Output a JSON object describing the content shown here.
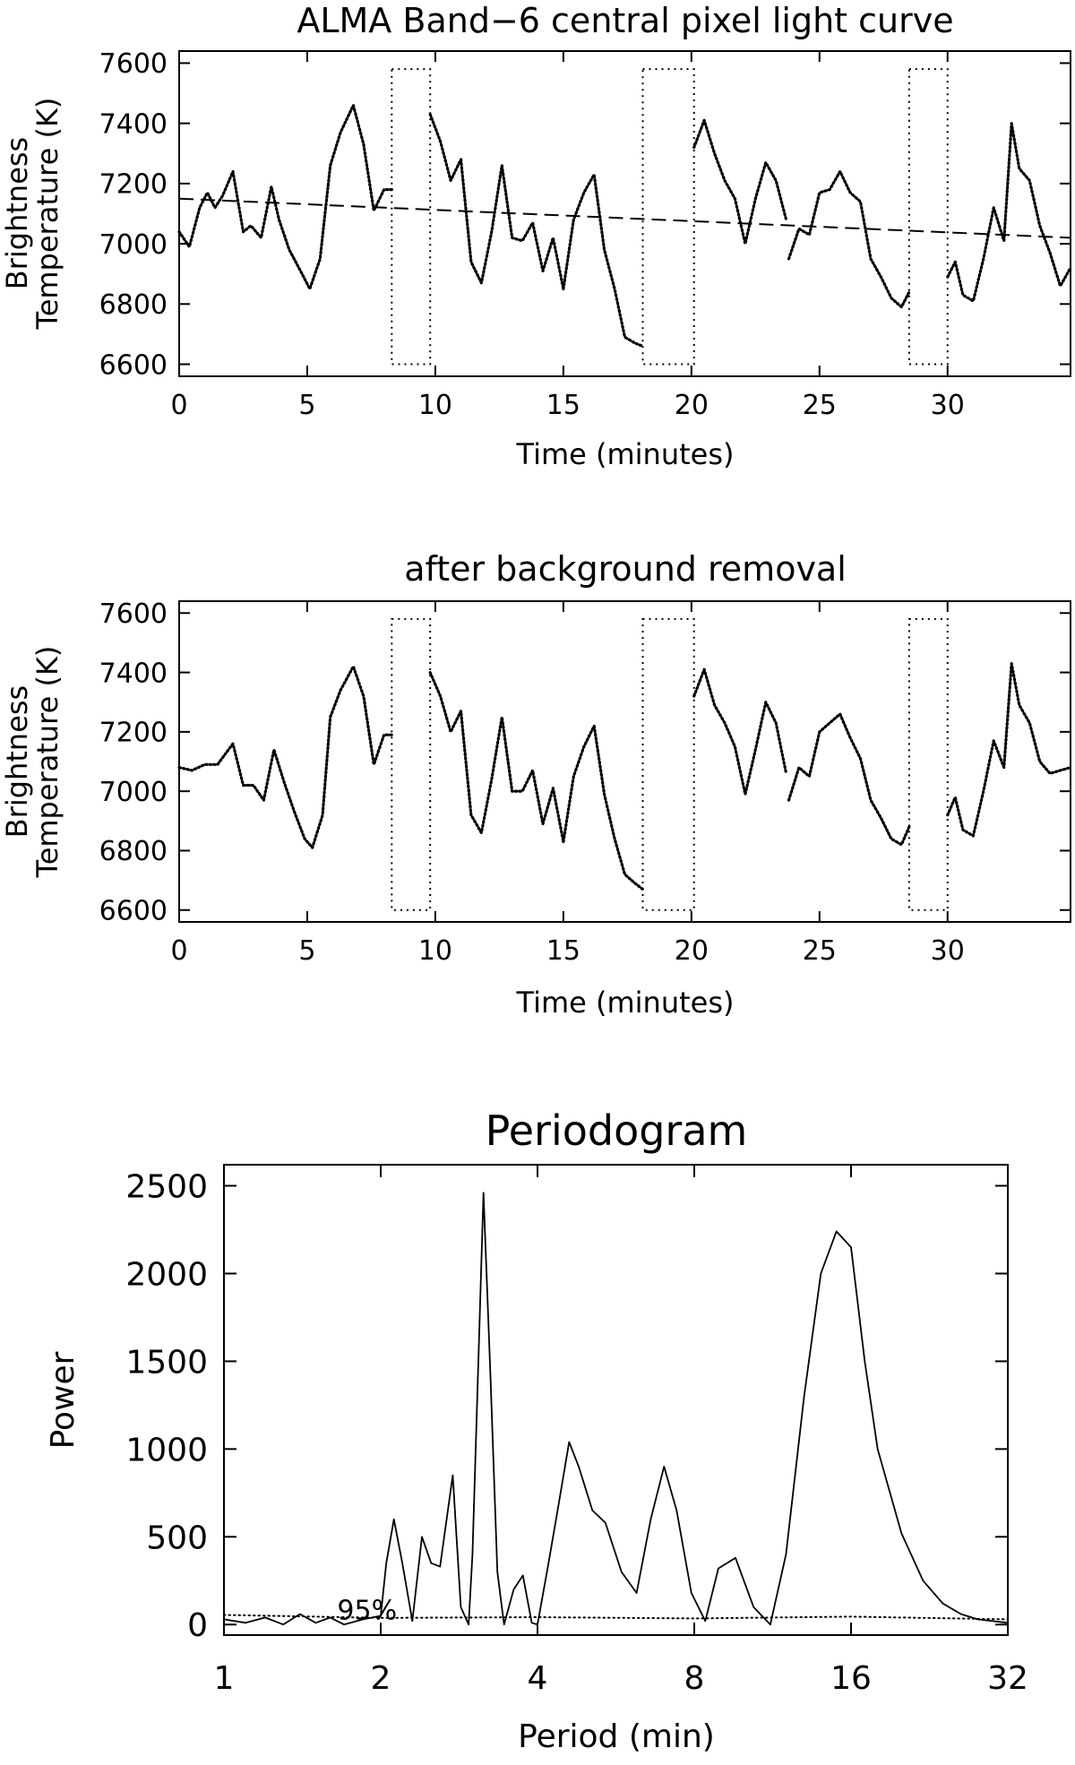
{
  "chart_data": [
    {
      "type": "line",
      "title": "ALMA Band−6 central pixel light curve",
      "xlabel": "Time (minutes)",
      "ylabel": [
        "Brightness",
        "Temperature (K)"
      ],
      "xlim": [
        0,
        34.8
      ],
      "ylim": [
        6560,
        7640
      ],
      "xticks": [
        0,
        5,
        10,
        15,
        20,
        25,
        30
      ],
      "xtick_labels": [
        "0",
        "5",
        "10",
        "15",
        "20",
        "25",
        "30"
      ],
      "yticks": [
        6600,
        6800,
        7000,
        7200,
        7400,
        7600
      ],
      "ytick_labels": [
        "6600",
        "6800",
        "7000",
        "7200",
        "7400",
        "7600"
      ],
      "gaps": [
        [
          8.3,
          9.8
        ],
        [
          18.1,
          20.1
        ],
        [
          28.5,
          30.0
        ]
      ],
      "series": [
        {
          "name": "light curve",
          "style": "dotted",
          "segments": [
            {
              "x": [
                0,
                0.4,
                0.8,
                1.1,
                1.4,
                1.7,
                2.1,
                2.5,
                2.8,
                3.2,
                3.6,
                3.9,
                4.3,
                4.8,
                5.1,
                5.5,
                5.9,
                6.3,
                6.8,
                7.2,
                7.6,
                8.0,
                8.3
              ],
              "y": [
                7040,
                6990,
                7120,
                7170,
                7120,
                7160,
                7240,
                7040,
                7060,
                7020,
                7190,
                7080,
                6980,
                6900,
                6850,
                6950,
                7260,
                7370,
                7460,
                7330,
                7110,
                7180,
                7180
              ]
            },
            {
              "x": [
                9.8,
                10.2,
                10.6,
                11.0,
                11.4,
                11.8,
                12.2,
                12.6,
                13.0,
                13.4,
                13.8,
                14.2,
                14.6,
                15.0
              ],
              "y": [
                7430,
                7340,
                7210,
                7280,
                6940,
                6870,
                7040,
                7260,
                7020,
                7010,
                7070,
                6910,
                7020,
                6850
              ]
            },
            {
              "x": [
                15.0,
                15.4,
                15.8,
                16.2,
                16.6,
                17.0,
                17.4,
                17.8,
                18.1
              ],
              "y": [
                6850,
                7080,
                7170,
                7230,
                6980,
                6850,
                6690,
                6670,
                6660
              ]
            },
            {
              "x": [
                20.1,
                20.5,
                20.9,
                21.3,
                21.7,
                22.1,
                22.5,
                22.9,
                23.3,
                23.7
              ],
              "y": [
                7320,
                7410,
                7300,
                7210,
                7150,
                7000,
                7150,
                7270,
                7210,
                7080
              ]
            },
            {
              "x": [
                23.8,
                24.2,
                24.6,
                25.0,
                25.4,
                25.8,
                26.2,
                26.6,
                27.0,
                27.4,
                27.8,
                28.2,
                28.5
              ],
              "y": [
                6950,
                7050,
                7030,
                7170,
                7180,
                7240,
                7170,
                7140,
                6950,
                6890,
                6820,
                6790,
                6840
              ]
            },
            {
              "x": [
                30.0,
                30.3,
                30.6,
                31.0,
                31.4,
                31.8,
                32.2,
                32.5,
                32.8,
                33.2,
                33.6,
                34.0,
                34.4,
                34.8
              ],
              "y": [
                6890,
                6940,
                6830,
                6810,
                6950,
                7120,
                7010,
                7400,
                7250,
                7210,
                7060,
                6970,
                6860,
                6920
              ]
            }
          ]
        },
        {
          "name": "background trend",
          "style": "dashed",
          "segments": [
            {
              "x": [
                0,
                34.8
              ],
              "y": [
                7150,
                7020
              ]
            }
          ]
        }
      ]
    },
    {
      "type": "line",
      "title": "after background removal",
      "xlabel": "Time (minutes)",
      "ylabel": [
        "Brightness",
        "Temperature (K)"
      ],
      "xlim": [
        0,
        34.8
      ],
      "ylim": [
        6560,
        7640
      ],
      "xticks": [
        0,
        5,
        10,
        15,
        20,
        25,
        30
      ],
      "xtick_labels": [
        "0",
        "5",
        "10",
        "15",
        "20",
        "25",
        "30"
      ],
      "yticks": [
        6600,
        6800,
        7000,
        7200,
        7400,
        7600
      ],
      "ytick_labels": [
        "6600",
        "6800",
        "7000",
        "7200",
        "7400",
        "7600"
      ],
      "gaps": [
        [
          8.3,
          9.8
        ],
        [
          18.1,
          20.1
        ],
        [
          28.5,
          30.0
        ]
      ],
      "series": [
        {
          "name": "detrended curve",
          "style": "dotted",
          "segments": [
            {
              "x": [
                0,
                0.5,
                1.0,
                1.5,
                2.1,
                2.5,
                2.9,
                3.3,
                3.7,
                4.1,
                4.5,
                4.9,
                5.2,
                5.6,
                5.9,
                6.3,
                6.8,
                7.2,
                7.6,
                8.0,
                8.3
              ],
              "y": [
                7080,
                7070,
                7090,
                7090,
                7160,
                7020,
                7020,
                6970,
                7140,
                7030,
                6930,
                6840,
                6810,
                6920,
                7250,
                7340,
                7420,
                7320,
                7090,
                7190,
                7190
              ]
            },
            {
              "x": [
                9.8,
                10.2,
                10.6,
                11.0,
                11.4,
                11.8,
                12.2,
                12.6,
                13.0,
                13.4,
                13.8,
                14.2,
                14.6,
                15.0
              ],
              "y": [
                7400,
                7320,
                7200,
                7270,
                6920,
                6860,
                7040,
                7250,
                7000,
                7000,
                7070,
                6890,
                7010,
                6830
              ]
            },
            {
              "x": [
                15.0,
                15.4,
                15.8,
                16.2,
                16.6,
                17.0,
                17.4,
                17.8,
                18.1
              ],
              "y": [
                6830,
                7050,
                7150,
                7220,
                6990,
                6840,
                6720,
                6690,
                6670
              ]
            },
            {
              "x": [
                20.1,
                20.5,
                20.9,
                21.3,
                21.7,
                22.1,
                22.5,
                22.9,
                23.3,
                23.7
              ],
              "y": [
                7320,
                7410,
                7290,
                7230,
                7150,
                6990,
                7140,
                7300,
                7230,
                7060
              ]
            },
            {
              "x": [
                23.8,
                24.2,
                24.6,
                25.0,
                25.4,
                25.8,
                26.2,
                26.6,
                27.0,
                27.4,
                27.8,
                28.2,
                28.5
              ],
              "y": [
                6970,
                7080,
                7050,
                7200,
                7230,
                7260,
                7180,
                7110,
                6970,
                6910,
                6840,
                6820,
                6880
              ]
            },
            {
              "x": [
                30.0,
                30.3,
                30.6,
                31.0,
                31.4,
                31.8,
                32.2,
                32.5,
                32.8,
                33.2,
                33.6,
                34.0,
                34.4,
                34.8
              ],
              "y": [
                6920,
                6980,
                6870,
                6850,
                7000,
                7170,
                7080,
                7430,
                7290,
                7230,
                7100,
                7060,
                7070,
                7080
              ]
            }
          ]
        }
      ]
    },
    {
      "type": "line",
      "title": "Periodogram",
      "xlabel": "Period (min)",
      "ylabel": "Power",
      "xscale": "log2",
      "xlim": [
        1,
        32
      ],
      "ylim": [
        -60,
        2620
      ],
      "xticks": [
        1,
        2,
        4,
        8,
        16,
        32
      ],
      "xtick_labels": [
        "1",
        "2",
        "4",
        "8",
        "16",
        "32"
      ],
      "yticks": [
        0,
        500,
        1000,
        1500,
        2000,
        2500
      ],
      "ytick_labels": [
        "0",
        "500",
        "1000",
        "1500",
        "2000",
        "2500"
      ],
      "annotation": {
        "text": "95%",
        "x": 1.65,
        "y": 60
      },
      "series": [
        {
          "name": "power",
          "style": "solid",
          "segments": [
            {
              "x": [
                1.0,
                1.1,
                1.2,
                1.3,
                1.4,
                1.5,
                1.6,
                1.7,
                1.85,
                2.0,
                2.05,
                2.12,
                2.2,
                2.3,
                2.4,
                2.5,
                2.6,
                2.75,
                2.85,
                2.95,
                3.0,
                3.08,
                3.15,
                3.25,
                3.35,
                3.45,
                3.6,
                3.75,
                3.9,
                4.0,
                4.2,
                4.4,
                4.6,
                4.8,
                5.1,
                5.4,
                5.8,
                6.2,
                6.6,
                7.0,
                7.4,
                7.9,
                8.4,
                8.9,
                9.6,
                10.4,
                11.2,
                12.0,
                13.0,
                14.0,
                15.0,
                16.0,
                17.0,
                18.0,
                20.0,
                22.0,
                24.0,
                26.0,
                28.0,
                32.0
              ],
              "y": [
                30,
                10,
                40,
                0,
                60,
                10,
                40,
                0,
                30,
                50,
                350,
                600,
                350,
                20,
                500,
                350,
                330,
                850,
                100,
                0,
                400,
                1500,
                2460,
                1400,
                300,
                0,
                200,
                280,
                10,
                0,
                350,
                700,
                1040,
                900,
                650,
                580,
                300,
                180,
                600,
                900,
                650,
                180,
                20,
                320,
                380,
                100,
                0,
                400,
                1300,
                2000,
                2240,
                2150,
                1500,
                1000,
                520,
                250,
                120,
                60,
                30,
                10
              ]
            }
          ]
        },
        {
          "name": "95% significance",
          "style": "dotted",
          "segments": [
            {
              "x": [
                1,
                2,
                4,
                8,
                16,
                32
              ],
              "y": [
                55,
                38,
                42,
                35,
                45,
                30
              ]
            }
          ]
        }
      ]
    }
  ]
}
